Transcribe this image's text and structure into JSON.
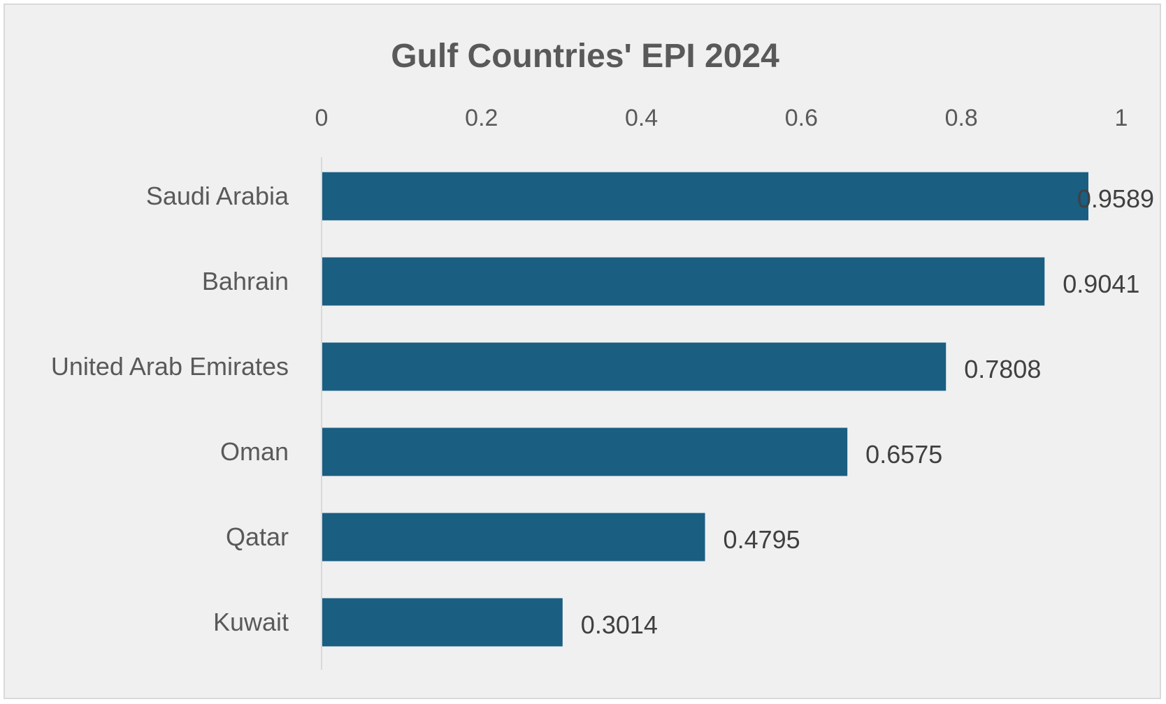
{
  "chart_data": {
    "type": "bar",
    "orientation": "horizontal",
    "title": "Gulf Countries' EPI 2024",
    "categories": [
      "Saudi Arabia",
      "Bahrain",
      "United Arab Emirates",
      "Oman",
      "Qatar",
      "Kuwait"
    ],
    "values": [
      0.9589,
      0.9041,
      0.7808,
      0.6575,
      0.4795,
      0.3014
    ],
    "value_labels": [
      "0.9589",
      "0.9041",
      "0.7808",
      "0.6575",
      "0.4795",
      "0.3014"
    ],
    "xlim": [
      0,
      1
    ],
    "x_ticks": [
      0,
      0.2,
      0.4,
      0.6,
      0.8,
      1
    ],
    "x_tick_labels": [
      "0",
      "0.2",
      "0.4",
      "0.6",
      "0.8",
      "1"
    ],
    "x_axis_position": "top",
    "xlabel": "",
    "ylabel": "",
    "grid": false,
    "legend": false,
    "colors": {
      "bar": "#1a5e82",
      "background": "#f0f0f0",
      "border": "#d9d9d9",
      "axis_line": "#d9d9d9",
      "text": "#595959",
      "value_text": "#404040"
    }
  }
}
